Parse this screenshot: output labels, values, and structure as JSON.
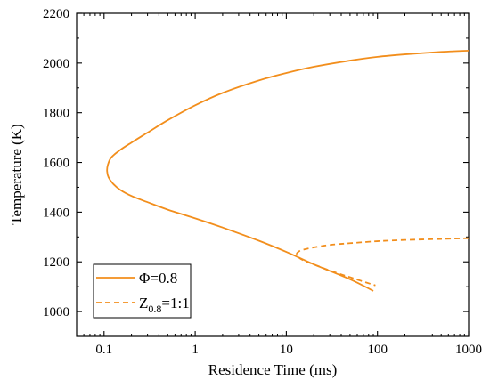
{
  "chart_data": {
    "type": "line",
    "xlabel": "Residence Time (ms)",
    "ylabel": "Temperature (K)",
    "xscale": "log",
    "xlim": [
      0.05,
      1000
    ],
    "ylim": [
      900,
      2200
    ],
    "x_ticks": [
      {
        "value": 0.1,
        "label": "0.1"
      },
      {
        "value": 1,
        "label": "1"
      },
      {
        "value": 10,
        "label": "10"
      },
      {
        "value": 100,
        "label": "100"
      },
      {
        "value": 1000,
        "label": "1000"
      }
    ],
    "y_ticks": [
      {
        "value": 1000,
        "label": "1000"
      },
      {
        "value": 1200,
        "label": "1200"
      },
      {
        "value": 1400,
        "label": "1400"
      },
      {
        "value": 1600,
        "label": "1600"
      },
      {
        "value": 1800,
        "label": "1800"
      },
      {
        "value": 2000,
        "label": "2000"
      },
      {
        "value": 2200,
        "label": "2200"
      }
    ],
    "grid": false,
    "legend_position": "bottom-left",
    "series": [
      {
        "name_main": "Φ=0.8",
        "name_sub": "",
        "name_rest": "",
        "color": "#f28e1c",
        "style": "solid",
        "points": [
          [
            1000,
            2050
          ],
          [
            500,
            2045
          ],
          [
            200,
            2035
          ],
          [
            100,
            2025
          ],
          [
            50,
            2010
          ],
          [
            20,
            1985
          ],
          [
            10,
            1960
          ],
          [
            5,
            1930
          ],
          [
            2,
            1880
          ],
          [
            1,
            1830
          ],
          [
            0.5,
            1770
          ],
          [
            0.3,
            1720
          ],
          [
            0.2,
            1680
          ],
          [
            0.15,
            1650
          ],
          [
            0.12,
            1620
          ],
          [
            0.11,
            1590
          ],
          [
            0.108,
            1565
          ],
          [
            0.112,
            1540
          ],
          [
            0.125,
            1515
          ],
          [
            0.15,
            1490
          ],
          [
            0.2,
            1465
          ],
          [
            0.3,
            1440
          ],
          [
            0.5,
            1410
          ],
          [
            1,
            1375
          ],
          [
            2,
            1338
          ],
          [
            5,
            1285
          ],
          [
            10,
            1240
          ],
          [
            20,
            1190
          ],
          [
            50,
            1130
          ],
          [
            90,
            1083
          ]
        ]
      },
      {
        "name_main": "Z",
        "name_sub": "0.8",
        "name_rest": "=1:1",
        "color": "#f28e1c",
        "style": "dashed",
        "points": [
          [
            1000,
            1295
          ],
          [
            500,
            1292
          ],
          [
            200,
            1288
          ],
          [
            100,
            1283
          ],
          [
            50,
            1275
          ],
          [
            30,
            1268
          ],
          [
            20,
            1258
          ],
          [
            15,
            1248
          ],
          [
            13.5,
            1240
          ],
          [
            13,
            1232
          ],
          [
            13.5,
            1220
          ],
          [
            15,
            1208
          ],
          [
            20,
            1190
          ],
          [
            30,
            1165
          ],
          [
            50,
            1138
          ],
          [
            95,
            1105
          ]
        ]
      }
    ]
  }
}
